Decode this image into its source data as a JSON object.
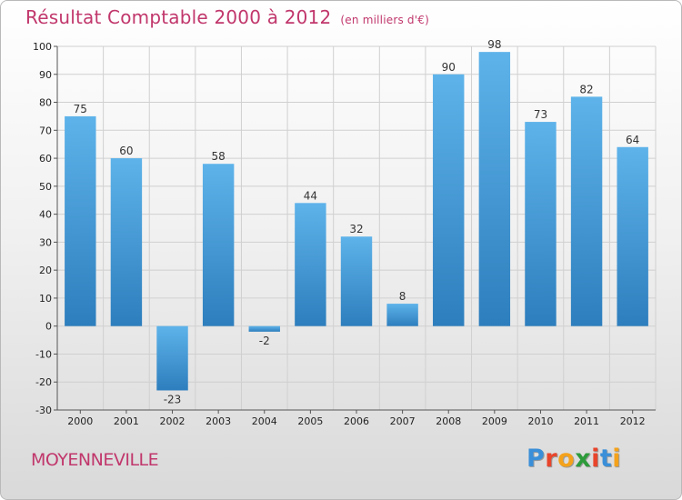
{
  "header": {
    "title": "Résultat Comptable 2000 à 2012",
    "subtitle": "(en milliers d'€)"
  },
  "footer": {
    "commune": "MOYENNEVILLE",
    "brand": [
      "P",
      "r",
      "o",
      "x",
      "i",
      "t",
      "i"
    ],
    "brand_colors": [
      "#3a8fd8",
      "#e8452c",
      "#f4a21b",
      "#2d9b3b",
      "#e8452c",
      "#3a8fd8",
      "#f4a21b"
    ]
  },
  "colors": {
    "title": "#c1376c",
    "bar_top": "#5eb3ea",
    "bar_bottom": "#2d7ebd",
    "grid": "#d0d0d0"
  },
  "chart_data": {
    "type": "bar",
    "categories": [
      "2000",
      "2001",
      "2002",
      "2003",
      "2004",
      "2005",
      "2006",
      "2007",
      "2008",
      "2009",
      "2010",
      "2011",
      "2012"
    ],
    "values": [
      75,
      60,
      -23,
      58,
      -2,
      44,
      32,
      8,
      90,
      98,
      73,
      82,
      64
    ],
    "ylim": [
      -30,
      100
    ],
    "yticks": [
      -30,
      -20,
      -10,
      0,
      10,
      20,
      30,
      40,
      50,
      60,
      70,
      80,
      90,
      100
    ],
    "grid": true,
    "data_labels": true
  }
}
